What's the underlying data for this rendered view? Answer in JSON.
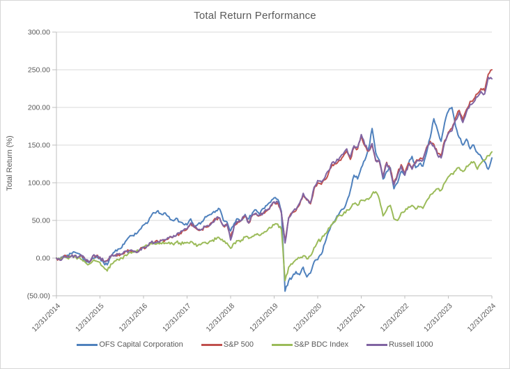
{
  "chart_data": {
    "type": "line",
    "title": "Total Return Performance",
    "xlabel": "",
    "ylabel": "Total Return (%)",
    "ylim": [
      -50,
      300
    ],
    "y_tick_step": 50,
    "y_tick_labels": [
      "300.00",
      "250.00",
      "200.00",
      "150.00",
      "100.00",
      "50.00",
      "0.00",
      "(50.00)"
    ],
    "x_tick_labels": [
      "12/31/2014",
      "12/31/2015",
      "12/31/2016",
      "12/31/2017",
      "12/31/2018",
      "12/31/2019",
      "12/31/2020",
      "12/31/2021",
      "12/31/2022",
      "12/31/2023",
      "12/31/2024"
    ],
    "x_interval": "monthly",
    "x_range": [
      "12/31/2014",
      "12/31/2024"
    ],
    "grid": "horizontal",
    "legend_position": "bottom",
    "series": [
      {
        "name": "OFS Capital Corporation",
        "color": "#4F81BD",
        "values": [
          0,
          -2,
          3,
          4,
          6,
          8,
          6,
          2,
          -4,
          -6,
          0,
          2,
          0,
          -6,
          -9,
          2,
          8,
          12,
          14,
          22,
          28,
          30,
          32,
          38,
          44,
          46,
          55,
          60,
          63,
          58,
          60,
          55,
          50,
          53,
          48,
          45,
          44,
          52,
          42,
          45,
          48,
          55,
          57,
          60,
          63,
          65,
          50,
          48,
          36,
          46,
          52,
          50,
          58,
          52,
          60,
          64,
          58,
          66,
          70,
          74,
          80,
          78,
          62,
          -44,
          -30,
          -25,
          -18,
          -22,
          -12,
          -25,
          -20,
          -5,
          -2,
          5,
          20,
          35,
          45,
          52,
          60,
          65,
          75,
          90,
          110,
          105,
          120,
          130,
          145,
          172,
          140,
          130,
          105,
          115,
          120,
          92,
          100,
          115,
          110,
          125,
          135,
          120,
          125,
          122,
          140,
          160,
          185,
          170,
          155,
          180,
          195,
          200,
          175,
          160,
          150,
          158,
          145,
          150,
          140,
          135,
          128,
          118,
          133
        ]
      },
      {
        "name": "S&P 500",
        "color": "#C0504D",
        "values": [
          0,
          -3,
          2.6,
          1,
          2,
          3.3,
          1.3,
          3.4,
          -2.7,
          -5.1,
          3,
          3.3,
          1.4,
          -3.6,
          -3.7,
          2.9,
          3.3,
          5.1,
          5.4,
          9.3,
          9.4,
          9.4,
          7.4,
          11.5,
          13.7,
          15.9,
          20.4,
          20.5,
          21.7,
          23.4,
          24.2,
          26.7,
          27.1,
          29.7,
          32.7,
          36.7,
          38.3,
          46.3,
          40.9,
          37.4,
          38,
          41.3,
          42.1,
          47.3,
          52.1,
          52.9,
          42.5,
          45.3,
          27,
          43,
          47.5,
          50.4,
          56.5,
          46.5,
          56.8,
          59.1,
          56.5,
          59.4,
          62.9,
          68.8,
          74,
          73.9,
          59.6,
          22,
          53,
          60,
          63,
          71,
          84,
          77,
          72,
          92,
          100,
          98,
          104,
          113,
          124,
          125,
          130,
          135,
          142,
          131,
          147,
          145,
          163,
          149,
          142,
          151,
          129,
          128,
          108,
          127,
          117,
          99,
          112,
          124,
          112,
          126,
          120,
          128,
          131,
          132,
          147,
          155,
          151,
          139,
          135,
          156,
          167,
          172,
          186,
          196,
          183,
          197,
          208,
          211,
          218,
          225,
          222,
          244,
          250
        ]
      },
      {
        "name": "S&P BDC Index",
        "color": "#9BBB59",
        "values": [
          0,
          -2,
          1,
          0,
          2,
          2,
          0,
          -2,
          -6,
          -8,
          -4,
          -4,
          -6,
          -12,
          -17,
          -8,
          -4,
          -2,
          0,
          4,
          7,
          8,
          9,
          11,
          15,
          17,
          20,
          19,
          20,
          19,
          20,
          21,
          19,
          21,
          20,
          19,
          21,
          22,
          18,
          17,
          19,
          21,
          21,
          24,
          25,
          26,
          22,
          20,
          13,
          20,
          23,
          24,
          28,
          26,
          29,
          31,
          30,
          33,
          36,
          40,
          44,
          45,
          38,
          -30,
          -12,
          -8,
          -2,
          0,
          3,
          -1,
          3,
          14,
          22,
          25,
          32,
          40,
          45,
          50,
          57,
          58,
          64,
          66,
          72,
          70,
          77,
          76,
          78,
          85,
          88,
          78,
          56,
          64,
          70,
          52,
          50,
          60,
          62,
          68,
          70,
          65,
          68,
          66,
          76,
          84,
          88,
          92,
          90,
          100,
          108,
          112,
          116,
          120,
          115,
          122,
          125,
          128,
          118,
          126,
          130,
          136,
          141
        ]
      },
      {
        "name": "Russell 1000",
        "color": "#8064A2",
        "values": [
          0,
          -2.8,
          2.8,
          1.3,
          2.1,
          3.5,
          1.4,
          3.2,
          -2.9,
          -5.5,
          2.6,
          3,
          1.2,
          -3.9,
          -4,
          2.7,
          3.2,
          5,
          5.3,
          9.2,
          9.5,
          9.6,
          7.5,
          11.8,
          14,
          16.1,
          20.6,
          20.7,
          21.9,
          23.6,
          24.5,
          26.9,
          27.3,
          30,
          33,
          37,
          38.8,
          46.6,
          41.2,
          37.7,
          38.3,
          41.8,
          42.6,
          47.7,
          52.6,
          53.2,
          42.7,
          45.6,
          24,
          43.3,
          47.9,
          50.6,
          56.8,
          46.8,
          57.2,
          59.6,
          56.9,
          59.8,
          63.4,
          69.4,
          74.7,
          74.5,
          60.2,
          20,
          53.5,
          61,
          64.5,
          73,
          86,
          78.5,
          73.5,
          94,
          103,
          101,
          107,
          116,
          127,
          127.5,
          133,
          138,
          145,
          134,
          149,
          147,
          164,
          150,
          143,
          152,
          129.5,
          129,
          107,
          126,
          116,
          97,
          110,
          122,
          110,
          124,
          118,
          126,
          129,
          130,
          145,
          153,
          149,
          137,
          133,
          154,
          165,
          169,
          183,
          193,
          180,
          194,
          204,
          207,
          214,
          221,
          218,
          240,
          238
        ]
      }
    ]
  }
}
